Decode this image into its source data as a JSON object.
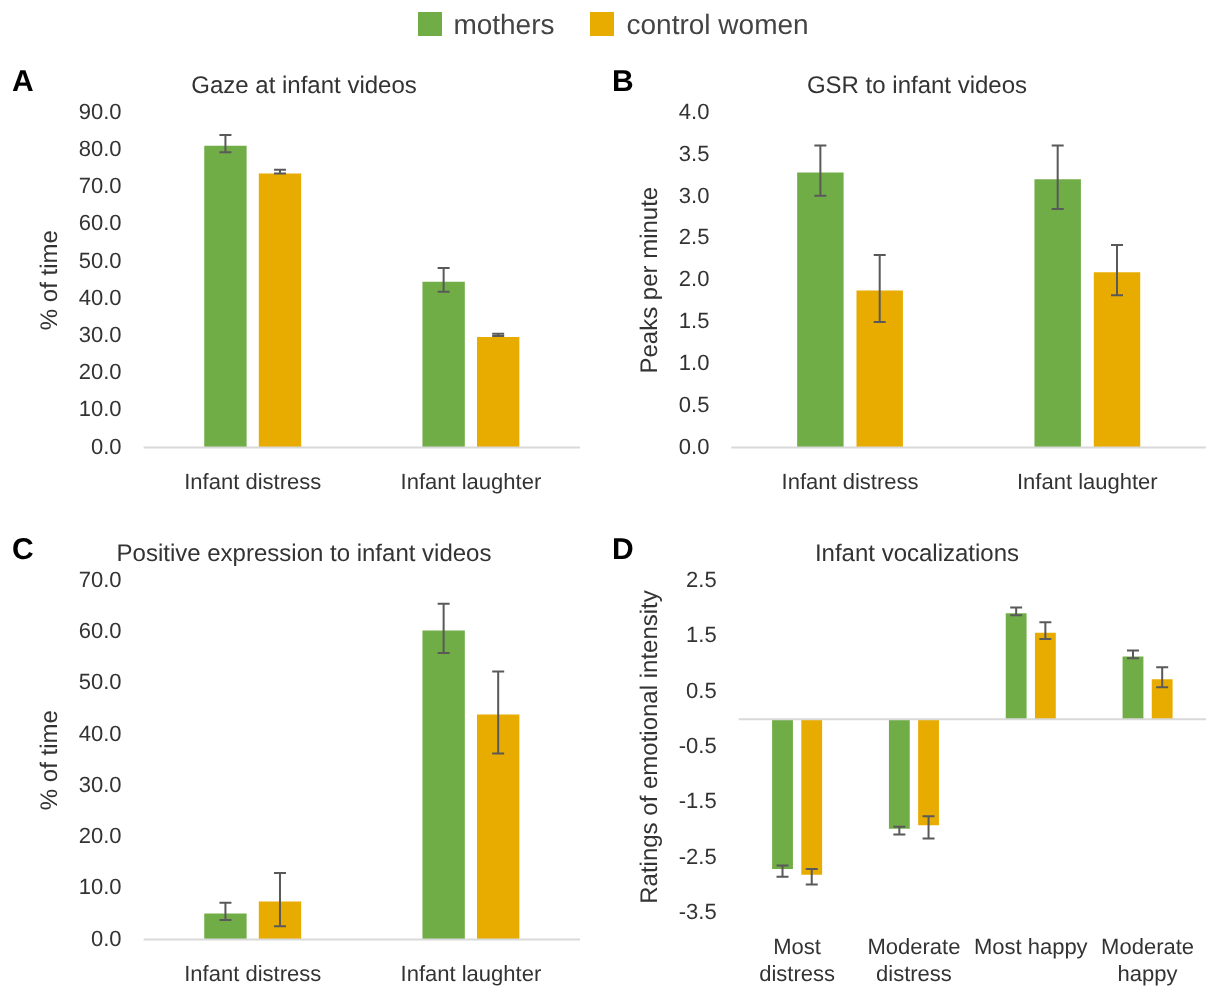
{
  "chart_data": [
    {
      "type": "bar",
      "title": "Gaze at infant videos",
      "ylabel": "% of time",
      "annotations": [
        "A"
      ],
      "legend": "top",
      "grid": false,
      "categories": [
        "Infant distress",
        "Infant laughter"
      ],
      "ylim": [
        0,
        90
      ],
      "yticks": [
        {
          "value": 0,
          "label": "0.0"
        },
        {
          "value": 10,
          "label": "10.0"
        },
        {
          "value": 20,
          "label": "20.0"
        },
        {
          "value": 30,
          "label": "30.0"
        },
        {
          "value": 40,
          "label": "40.0"
        },
        {
          "value": 50,
          "label": "50.0"
        },
        {
          "value": 60,
          "label": "60.0"
        },
        {
          "value": 70,
          "label": "70.0"
        },
        {
          "value": 80,
          "label": "80.0"
        },
        {
          "value": 90,
          "label": "90.0"
        }
      ],
      "series": [
        {
          "name": "mothers",
          "color": "#70ad47",
          "values": [
            81.7,
            45.1
          ],
          "errors": [
            2.3,
            3.2
          ]
        },
        {
          "name": "control women",
          "color": "#e8ac00",
          "values": [
            74.2,
            30.3
          ],
          "errors": [
            0.5,
            0.3
          ]
        }
      ]
    },
    {
      "type": "bar",
      "title": "GSR to infant videos",
      "ylabel": "Peaks per minute",
      "annotations": [
        "B"
      ],
      "grid": false,
      "categories": [
        "Infant distress",
        "Infant laughter"
      ],
      "ylim": [
        0,
        4
      ],
      "yticks": [
        {
          "value": 0,
          "label": "0.0"
        },
        0.5,
        {
          "value": 1,
          "label": "1.0"
        },
        1.5,
        {
          "value": 2,
          "label": "2.0"
        },
        2.5,
        {
          "value": 3,
          "label": "3.0"
        },
        3.5,
        {
          "value": 4,
          "label": "4.0"
        }
      ],
      "series": [
        {
          "color": "#70ad47",
          "values": [
            3.31,
            3.23
          ],
          "errors": [
            0.3,
            0.38
          ]
        },
        {
          "color": "#e8ac00",
          "values": [
            1.9,
            2.12
          ],
          "errors": [
            0.4,
            0.3
          ]
        }
      ]
    },
    {
      "type": "bar",
      "title": "Positive expression to infant videos",
      "ylabel": "% of time",
      "annotations": [
        "C"
      ],
      "grid": false,
      "categories": [
        "Infant distress",
        "Infant laughter"
      ],
      "ylim": [
        0,
        70
      ],
      "yticks": [
        {
          "value": 0,
          "label": "0.0"
        },
        {
          "value": 10,
          "label": "10.0"
        },
        {
          "value": 20,
          "label": "20.0"
        },
        {
          "value": 30,
          "label": "30.0"
        },
        {
          "value": 40,
          "label": "40.0"
        },
        {
          "value": 50,
          "label": "50.0"
        },
        {
          "value": 60,
          "label": "60.0"
        },
        {
          "value": 70,
          "label": "70.0"
        }
      ],
      "series": [
        {
          "color": "#70ad47",
          "values": [
            5.5,
            60.7
          ],
          "errors": [
            1.7,
            4.8
          ]
        },
        {
          "color": "#e8ac00",
          "values": [
            7.8,
            44.3
          ],
          "errors": [
            5.2,
            8
          ]
        }
      ]
    },
    {
      "type": "bar",
      "title": "Infant vocalizations",
      "ylabel": "Ratings of emotional intensity",
      "annotations": [
        "D"
      ],
      "grid": false,
      "categories": [
        "Most distress",
        "Moderate distress",
        "Most happy",
        "Moderate happy"
      ],
      "ylim": [
        -3.5,
        2.5
      ],
      "yticks": [
        -3.5,
        -2.5,
        -1.5,
        -0.5,
        0.5,
        1.5,
        2.5
      ],
      "series": [
        {
          "color": "#70ad47",
          "values": [
            -2.74,
            -2.01,
            1.95,
            1.17
          ],
          "errors": [
            0.1,
            0.07,
            0.07,
            0.07
          ]
        },
        {
          "color": "#e8ac00",
          "values": [
            -2.84,
            -1.95,
            1.6,
            0.76
          ],
          "errors": [
            0.14,
            0.2,
            0.15,
            0.18
          ]
        }
      ]
    }
  ]
}
